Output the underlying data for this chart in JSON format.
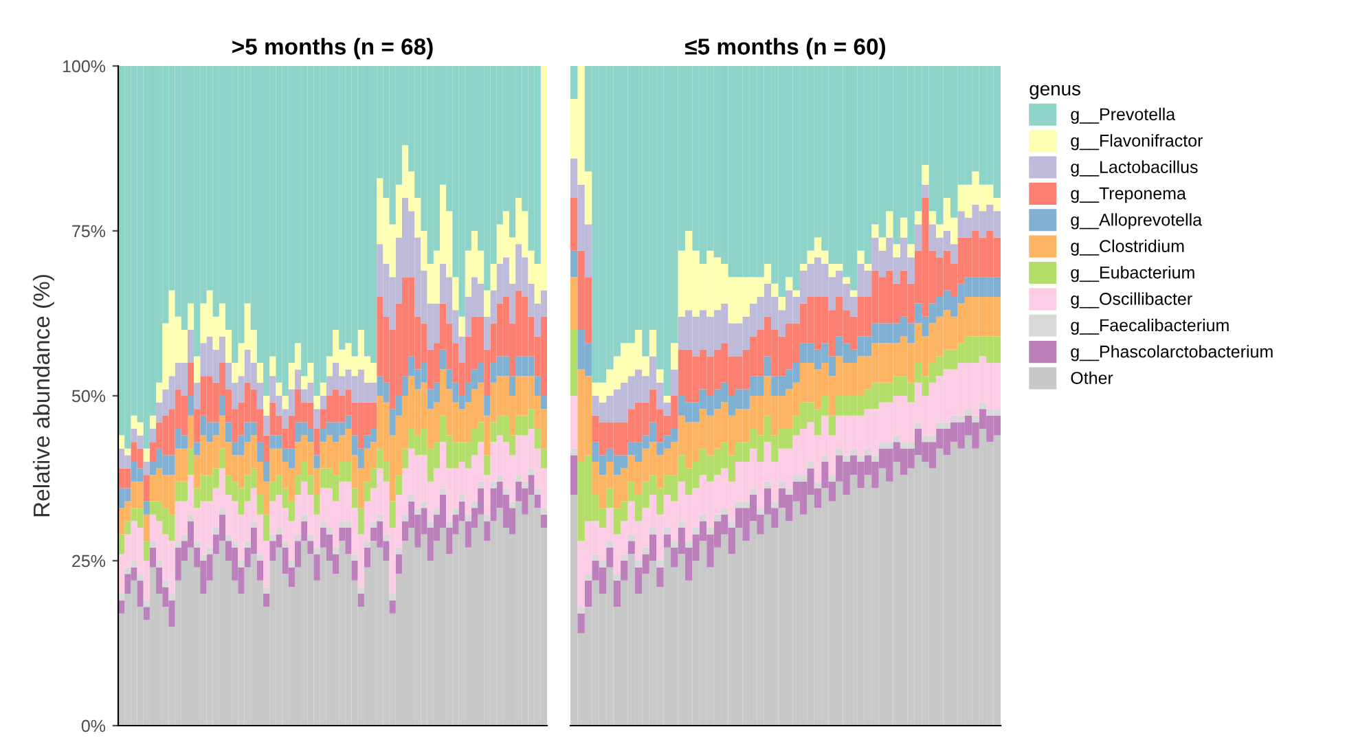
{
  "chart_data": [
    {
      "type": "bar",
      "stacked": true,
      "title": ">5 months (n = 68)",
      "ylabel": "Relative abundance (%)",
      "categories": [
        null,
        null,
        null,
        null,
        null,
        null,
        null,
        null,
        null,
        null,
        null,
        null,
        null,
        null,
        null,
        null,
        null,
        null,
        null,
        null,
        null,
        null,
        null,
        null,
        null,
        null,
        null,
        null,
        null,
        null,
        null,
        null,
        null,
        null,
        null,
        null,
        null,
        null,
        null,
        null,
        null,
        null,
        null,
        null,
        null,
        null,
        null,
        null,
        null,
        null,
        null,
        null,
        null,
        null,
        null,
        null,
        null,
        null,
        null,
        null,
        null,
        null,
        null,
        null,
        null,
        null,
        null,
        null
      ],
      "ylim": [
        0,
        100
      ],
      "yticks": [
        {
          "value": 0,
          "label": "0%"
        },
        {
          "value": 25,
          "label": "25%"
        },
        {
          "value": 50,
          "label": "50%"
        },
        {
          "value": 75,
          "label": "75%"
        },
        {
          "value": 100,
          "label": "100%"
        }
      ],
      "tick_labels": "y",
      "series": [
        {
          "color": "#c8c8c8",
          "values": [
            17,
            20,
            22,
            18,
            16,
            24,
            20,
            18,
            15,
            22,
            25,
            27,
            24,
            20,
            22,
            26,
            28,
            25,
            22,
            20,
            24,
            26,
            22,
            18,
            25,
            27,
            23,
            21,
            24,
            28,
            26,
            22,
            27,
            25,
            23,
            28,
            26,
            22,
            18,
            24,
            28,
            27,
            25,
            17,
            23,
            28,
            30,
            27,
            29,
            25,
            28,
            30,
            26,
            29,
            31,
            27,
            30,
            32,
            28,
            31,
            33,
            30,
            29,
            34,
            32,
            35,
            33,
            30
          ]
        },
        {
          "color": "#bc80bd",
          "values": [
            2,
            3,
            2,
            4,
            2,
            3,
            4,
            3,
            4,
            5,
            3,
            4,
            3,
            5,
            4,
            3,
            4,
            3,
            5,
            4,
            3,
            4,
            3,
            2,
            3,
            2,
            4,
            3,
            4,
            3,
            2,
            4,
            3,
            4,
            3,
            2,
            4,
            3,
            2,
            3,
            2,
            4,
            3,
            2,
            3,
            3,
            4,
            5,
            4,
            5,
            4,
            5,
            4,
            3,
            3,
            4,
            3,
            4,
            3,
            5,
            4,
            5,
            4,
            3,
            4,
            3,
            2,
            2
          ]
        },
        {
          "color": "#d9d9d9",
          "values": [
            1,
            1,
            1,
            1,
            1,
            1,
            1,
            1,
            1,
            1,
            1,
            1,
            1,
            1,
            1,
            1,
            1,
            1,
            1,
            1,
            1,
            1,
            1,
            1,
            1,
            1,
            1,
            1,
            1,
            1,
            1,
            1,
            1,
            1,
            1,
            1,
            1,
            1,
            1,
            1,
            1,
            1,
            1,
            1,
            1,
            1,
            1,
            1,
            1,
            1,
            1,
            1,
            1,
            1,
            1,
            1,
            1,
            1,
            1,
            1,
            1,
            1,
            1,
            1,
            1,
            1,
            1,
            1
          ]
        },
        {
          "color": "#fccde5",
          "values": [
            6,
            5,
            6,
            7,
            6,
            4,
            6,
            7,
            8,
            6,
            5,
            6,
            5,
            8,
            7,
            6,
            6,
            6,
            6,
            7,
            6,
            5,
            6,
            7,
            5,
            5,
            5,
            6,
            6,
            5,
            6,
            5,
            5,
            6,
            7,
            6,
            6,
            7,
            8,
            6,
            5,
            7,
            8,
            10,
            8,
            7,
            7,
            8,
            7,
            6,
            6,
            7,
            8,
            6,
            5,
            7,
            7,
            6,
            6,
            6,
            6,
            7,
            7,
            6,
            7,
            6,
            6,
            6
          ]
        },
        {
          "color": "#b3de69",
          "values": [
            3,
            2,
            2,
            3,
            3,
            2,
            3,
            4,
            4,
            3,
            3,
            4,
            3,
            4,
            4,
            3,
            3,
            3,
            3,
            4,
            4,
            3,
            3,
            4,
            3,
            3,
            3,
            3,
            3,
            3,
            3,
            3,
            3,
            3,
            4,
            3,
            3,
            3,
            4,
            3,
            3,
            3,
            3,
            4,
            3,
            3,
            3,
            3,
            4,
            5,
            4,
            4,
            5,
            4,
            3,
            4,
            4,
            3,
            3,
            3,
            3,
            4,
            3,
            3,
            3,
            3,
            3,
            3
          ]
        },
        {
          "color": "#fdb462",
          "values": [
            4,
            3,
            4,
            4,
            4,
            4,
            5,
            5,
            6,
            5,
            5,
            5,
            5,
            6,
            5,
            5,
            5,
            5,
            4,
            5,
            5,
            5,
            5,
            5,
            5,
            4,
            4,
            5,
            5,
            4,
            5,
            4,
            4,
            5,
            5,
            4,
            5,
            5,
            6,
            5,
            4,
            8,
            9,
            10,
            9,
            8,
            8,
            7,
            7,
            6,
            6,
            7,
            7,
            6,
            5,
            6,
            6,
            6,
            6,
            6,
            6,
            6,
            6,
            6,
            6,
            5,
            5,
            6
          ]
        },
        {
          "color": "#80b1d3",
          "values": [
            3,
            2,
            3,
            2,
            2,
            2,
            3,
            3,
            3,
            3,
            2,
            3,
            2,
            3,
            3,
            2,
            3,
            3,
            2,
            3,
            3,
            2,
            3,
            3,
            2,
            2,
            2,
            3,
            3,
            2,
            2,
            2,
            2,
            2,
            3,
            2,
            2,
            3,
            3,
            2,
            2,
            3,
            3,
            4,
            3,
            3,
            3,
            3,
            3,
            3,
            3,
            3,
            3,
            3,
            2,
            3,
            3,
            3,
            3,
            3,
            3,
            3,
            3,
            3,
            3,
            3,
            3,
            2
          ]
        },
        {
          "color": "#fb8072",
          "values": [
            3,
            3,
            3,
            3,
            4,
            3,
            4,
            6,
            7,
            6,
            6,
            5,
            5,
            6,
            7,
            6,
            5,
            5,
            5,
            5,
            6,
            5,
            5,
            4,
            5,
            3,
            3,
            5,
            5,
            3,
            4,
            4,
            3,
            4,
            5,
            4,
            4,
            5,
            7,
            5,
            4,
            12,
            10,
            12,
            14,
            15,
            12,
            8,
            6,
            6,
            6,
            7,
            7,
            6,
            5,
            7,
            8,
            7,
            7,
            6,
            8,
            9,
            8,
            10,
            9,
            6,
            6,
            12
          ]
        },
        {
          "color": "#bebada",
          "values": [
            3,
            2,
            2,
            2,
            2,
            2,
            3,
            4,
            5,
            4,
            5,
            5,
            4,
            5,
            6,
            5,
            4,
            4,
            4,
            4,
            5,
            4,
            4,
            3,
            4,
            3,
            3,
            4,
            3,
            2,
            3,
            3,
            2,
            3,
            4,
            3,
            3,
            4,
            5,
            3,
            3,
            8,
            8,
            8,
            10,
            12,
            10,
            12,
            8,
            7,
            6,
            6,
            7,
            5,
            4,
            6,
            6,
            5,
            5,
            5,
            6,
            6,
            6,
            7,
            6,
            5,
            5,
            4
          ]
        },
        {
          "color": "#ffffb3",
          "values": [
            2,
            1,
            2,
            2,
            2,
            2,
            3,
            10,
            13,
            7,
            5,
            4,
            4,
            6,
            7,
            5,
            5,
            5,
            3,
            5,
            7,
            5,
            3,
            3,
            3,
            2,
            2,
            4,
            4,
            2,
            3,
            2,
            2,
            3,
            5,
            4,
            4,
            3,
            6,
            4,
            3,
            10,
            10,
            8,
            8,
            8,
            6,
            6,
            6,
            6,
            8,
            12,
            10,
            5,
            3,
            7,
            7,
            5,
            4,
            4,
            6,
            7,
            7,
            7,
            7,
            5,
            6,
            34
          ]
        },
        {
          "color": "#8dd3c7",
          "values": [
            56,
            58,
            53,
            54,
            58,
            53,
            48,
            39,
            34,
            38,
            40,
            36,
            44,
            36,
            34,
            38,
            36,
            40,
            45,
            42,
            36,
            40,
            45,
            50,
            44,
            48,
            50,
            45,
            42,
            47,
            45,
            50,
            48,
            44,
            40,
            43,
            42,
            44,
            40,
            44,
            45,
            17,
            20,
            24,
            18,
            12,
            16,
            20,
            25,
            30,
            28,
            18,
            22,
            32,
            38,
            28,
            25,
            28,
            34,
            30,
            24,
            22,
            26,
            20,
            22,
            28,
            30,
            0
          ]
        }
      ]
    },
    {
      "type": "bar",
      "stacked": true,
      "title": "≤5 months (n = 60)",
      "legend_title": "genus",
      "legend": "right",
      "categories": [
        null,
        null,
        null,
        null,
        null,
        null,
        null,
        null,
        null,
        null,
        null,
        null,
        null,
        null,
        null,
        null,
        null,
        null,
        null,
        null,
        null,
        null,
        null,
        null,
        null,
        null,
        null,
        null,
        null,
        null,
        null,
        null,
        null,
        null,
        null,
        null,
        null,
        null,
        null,
        null,
        null,
        null,
        null,
        null,
        null,
        null,
        null,
        null,
        null,
        null,
        null,
        null,
        null,
        null,
        null,
        null,
        null,
        null,
        null,
        null
      ],
      "ylim": [
        0,
        100
      ],
      "tick_labels": false,
      "series": [
        {
          "name": "Other",
          "color": "#c8c8c8",
          "values": [
            35,
            14,
            18,
            22,
            20,
            24,
            18,
            22,
            26,
            20,
            23,
            25,
            21,
            27,
            24,
            26,
            22,
            25,
            28,
            24,
            27,
            29,
            26,
            30,
            28,
            31,
            29,
            32,
            30,
            33,
            31,
            34,
            32,
            35,
            33,
            36,
            34,
            37,
            35,
            38,
            36,
            38,
            36,
            39,
            37,
            40,
            38,
            39,
            41,
            40,
            39,
            42,
            41,
            43,
            42,
            44,
            42,
            45,
            43,
            44
          ]
        },
        {
          "name": "g__Phascolarctobacterium",
          "color": "#bc80bd",
          "values": [
            6,
            3,
            4,
            3,
            4,
            3,
            4,
            3,
            2,
            4,
            3,
            4,
            3,
            2,
            3,
            4,
            5,
            4,
            3,
            5,
            4,
            3,
            4,
            3,
            5,
            4,
            3,
            4,
            3,
            3,
            4,
            3,
            5,
            4,
            3,
            4,
            3,
            4,
            5,
            3,
            4,
            3,
            4,
            3,
            5,
            3,
            4,
            3,
            4,
            3,
            4,
            3,
            4,
            3,
            4,
            3,
            4,
            3,
            4,
            3
          ]
        },
        {
          "name": "g__Faecalibacterium",
          "color": "#d9d9d9",
          "values": [
            1,
            1,
            1,
            1,
            1,
            1,
            1,
            1,
            1,
            1,
            1,
            1,
            1,
            1,
            1,
            1,
            1,
            1,
            1,
            1,
            1,
            1,
            1,
            1,
            1,
            1,
            1,
            1,
            1,
            1,
            1,
            1,
            1,
            1,
            1,
            1,
            1,
            1,
            1,
            1,
            1,
            1,
            1,
            1,
            1,
            1,
            1,
            1,
            1,
            1,
            1,
            1,
            1,
            1,
            1,
            1,
            1,
            1,
            1,
            1
          ]
        },
        {
          "name": "g__Oscillibacter",
          "color": "#fccde5",
          "values": [
            8,
            10,
            8,
            5,
            5,
            5,
            6,
            5,
            5,
            6,
            6,
            5,
            7,
            5,
            6,
            6,
            7,
            6,
            6,
            7,
            6,
            6,
            6,
            6,
            6,
            6,
            7,
            6,
            6,
            5,
            6,
            6,
            7,
            6,
            7,
            6,
            6,
            5,
            6,
            5,
            6,
            6,
            7,
            6,
            6,
            6,
            7,
            6,
            6,
            6,
            8,
            7,
            8,
            7,
            8,
            7,
            8,
            7,
            7,
            7
          ]
        },
        {
          "name": "g__Eubacterium",
          "color": "#b3de69",
          "values": [
            10,
            12,
            10,
            4,
            3,
            3,
            4,
            3,
            3,
            4,
            4,
            3,
            4,
            3,
            4,
            4,
            4,
            4,
            4,
            4,
            4,
            4,
            4,
            3,
            3,
            3,
            4,
            4,
            4,
            3,
            3,
            3,
            4,
            3,
            4,
            3,
            3,
            3,
            3,
            3,
            3,
            3,
            4,
            3,
            3,
            3,
            3,
            3,
            3,
            3,
            3,
            3,
            3,
            3,
            3,
            4,
            4,
            3,
            4,
            4
          ]
        },
        {
          "name": "g__Clostridium",
          "color": "#fdb462",
          "values": [
            8,
            14,
            12,
            5,
            5,
            4,
            5,
            5,
            4,
            5,
            5,
            5,
            5,
            4,
            5,
            6,
            7,
            6,
            6,
            6,
            6,
            6,
            6,
            5,
            5,
            5,
            6,
            6,
            6,
            5,
            6,
            5,
            6,
            6,
            6,
            5,
            6,
            6,
            5,
            5,
            6,
            5,
            6,
            6,
            6,
            5,
            6,
            6,
            6,
            6,
            6,
            6,
            6,
            5,
            6,
            6,
            6,
            6,
            6,
            6
          ]
        },
        {
          "name": "g__Alloprevotella",
          "color": "#80b1d3",
          "values": [
            4,
            6,
            5,
            3,
            3,
            2,
            3,
            2,
            2,
            3,
            2,
            3,
            2,
            2,
            2,
            3,
            3,
            3,
            3,
            3,
            3,
            3,
            3,
            3,
            3,
            3,
            3,
            3,
            3,
            3,
            3,
            3,
            3,
            3,
            3,
            3,
            3,
            3,
            3,
            2,
            3,
            3,
            3,
            3,
            3,
            3,
            3,
            3,
            3,
            3,
            3,
            3,
            3,
            3,
            3,
            3,
            3,
            3,
            3,
            3
          ]
        },
        {
          "name": "g__Treponema",
          "color": "#fb8072",
          "values": [
            8,
            12,
            10,
            4,
            5,
            4,
            5,
            5,
            5,
            6,
            5,
            5,
            5,
            3,
            5,
            7,
            8,
            7,
            6,
            6,
            6,
            6,
            6,
            5,
            6,
            6,
            7,
            6,
            7,
            6,
            7,
            6,
            6,
            7,
            8,
            7,
            7,
            6,
            5,
            5,
            6,
            6,
            8,
            7,
            8,
            6,
            7,
            6,
            8,
            18,
            8,
            6,
            6,
            5,
            7,
            6,
            7,
            6,
            7,
            6
          ]
        },
        {
          "name": "g__Lactobacillus",
          "color": "#bebada",
          "values": [
            6,
            10,
            8,
            3,
            3,
            4,
            5,
            6,
            5,
            5,
            4,
            5,
            4,
            2,
            4,
            5,
            6,
            6,
            6,
            6,
            6,
            6,
            5,
            5,
            5,
            5,
            5,
            5,
            5,
            4,
            5,
            4,
            5,
            5,
            6,
            5,
            5,
            4,
            4,
            3,
            5,
            4,
            5,
            4,
            5,
            4,
            5,
            4,
            4,
            2,
            4,
            3,
            3,
            3,
            4,
            3,
            4,
            4,
            4,
            4
          ]
        },
        {
          "name": "g__Flavonifractor",
          "color": "#ffffb3",
          "values": [
            9,
            18,
            8,
            2,
            3,
            4,
            5,
            6,
            5,
            6,
            3,
            4,
            2,
            1,
            4,
            10,
            12,
            10,
            7,
            10,
            8,
            6,
            7,
            7,
            6,
            4,
            3,
            3,
            2,
            2,
            2,
            1,
            1,
            2,
            3,
            2,
            2,
            1,
            1,
            1,
            2,
            1,
            2,
            2,
            4,
            2,
            3,
            2,
            2,
            3,
            2,
            2,
            5,
            4,
            4,
            5,
            5,
            4,
            3,
            2
          ]
        },
        {
          "name": "g__Prevotella",
          "color": "#8dd3c7",
          "values": [
            5,
            0,
            16,
            48,
            48,
            46,
            44,
            42,
            42,
            40,
            44,
            40,
            46,
            50,
            42,
            28,
            25,
            28,
            30,
            28,
            29,
            30,
            32,
            32,
            32,
            32,
            32,
            30,
            33,
            35,
            32,
            34,
            30,
            28,
            26,
            28,
            30,
            30,
            32,
            34,
            28,
            30,
            24,
            26,
            22,
            27,
            23,
            27,
            22,
            15,
            22,
            24,
            20,
            23,
            18,
            18,
            16,
            18,
            18,
            20
          ]
        }
      ]
    }
  ]
}
